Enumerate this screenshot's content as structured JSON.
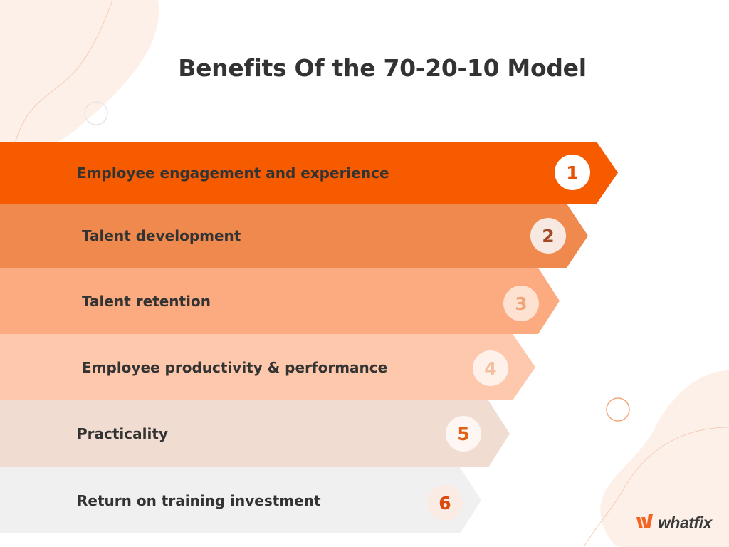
{
  "title": "Benefits Of the 70-20-10 Model",
  "steps": [
    {
      "number": "1",
      "label": "Employee engagement and experience",
      "fill": "#f65b00",
      "circle_fill": "#ffffff",
      "number_color": "#e84f00"
    },
    {
      "number": "2",
      "label": "Talent development",
      "fill": "#f0894d",
      "circle_fill": "#f7e9e1",
      "number_color": "#a34a25"
    },
    {
      "number": "3",
      "label": "Talent retention",
      "fill": "#fbab7f",
      "circle_fill": "#fde1d1",
      "number_color": "#f0a477"
    },
    {
      "number": "4",
      "label": "Employee productivity & performance",
      "fill": "#fdc8ab",
      "circle_fill": "#fdf1ea",
      "number_color": "#f5bf9f"
    },
    {
      "number": "5",
      "label": "Practicality",
      "fill": "#f1dcd1",
      "circle_fill": "#fdf6f2",
      "number_color": "#e06017"
    },
    {
      "number": "6",
      "label": "Return on training investment",
      "fill": "#f0f0f0",
      "circle_fill": "#faece4",
      "number_color": "#d94c0e"
    }
  ],
  "logo": {
    "text": "whatfix",
    "brand_color": "#f26522"
  }
}
